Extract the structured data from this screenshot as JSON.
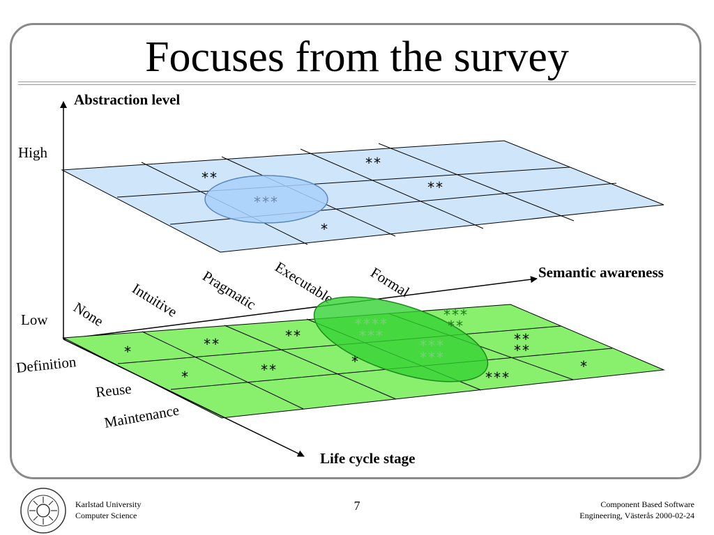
{
  "title": "Focuses from the survey",
  "axes": {
    "vertical": "Abstraction level",
    "horizontal": "Semantic awareness",
    "depth": "Life cycle stage"
  },
  "abstraction_levels": [
    "High",
    "Low"
  ],
  "semantic_levels": [
    "None",
    "Intuitive",
    "Pragmatic",
    "Executable",
    "Formal"
  ],
  "lifecycle_stages": [
    "Definition",
    "Reuse",
    "Maintenance"
  ],
  "high_plane": {
    "color": "#cfe6fa",
    "focus_fill": "#a9d0fb",
    "marks": [
      "**",
      "***",
      "**",
      "**",
      "*"
    ]
  },
  "low_plane": {
    "color": "#88f06c",
    "focus_fill": "#35d235",
    "marks": [
      "*",
      "**",
      "**",
      "****",
      "***",
      "***",
      "**",
      "*",
      "**",
      "*",
      "***",
      "***",
      "**",
      "**",
      "***",
      "*"
    ]
  },
  "footer": {
    "university": "Karlstad University",
    "department": "Computer Science",
    "page": "7",
    "course_line1": "Component Based Software",
    "course_line2": "Engineering, Västerås 2000-02-24",
    "logo_text": "KARLSTAD UNIVERSITY"
  }
}
